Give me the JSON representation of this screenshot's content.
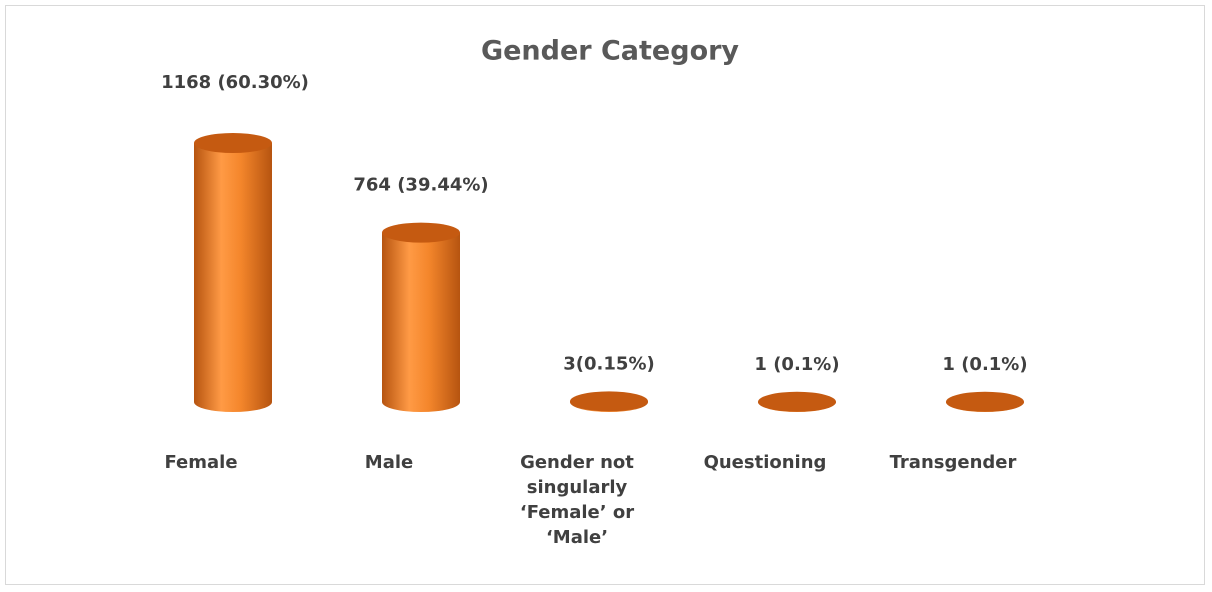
{
  "chart_data": {
    "type": "bar",
    "title": "Gender Category",
    "categories": [
      "Female",
      "Male",
      "Gender not singularly ‘Female’ or ‘Male’",
      "Questioning",
      "Transgender"
    ],
    "values": [
      1168,
      764,
      3,
      1,
      1
    ],
    "value_labels": [
      "1168 (60.30%)",
      "764 (39.44%)",
      "3(0.15%)",
      "1 (0.1%)",
      "1 (0.1%)"
    ],
    "color": "#f4862b"
  }
}
